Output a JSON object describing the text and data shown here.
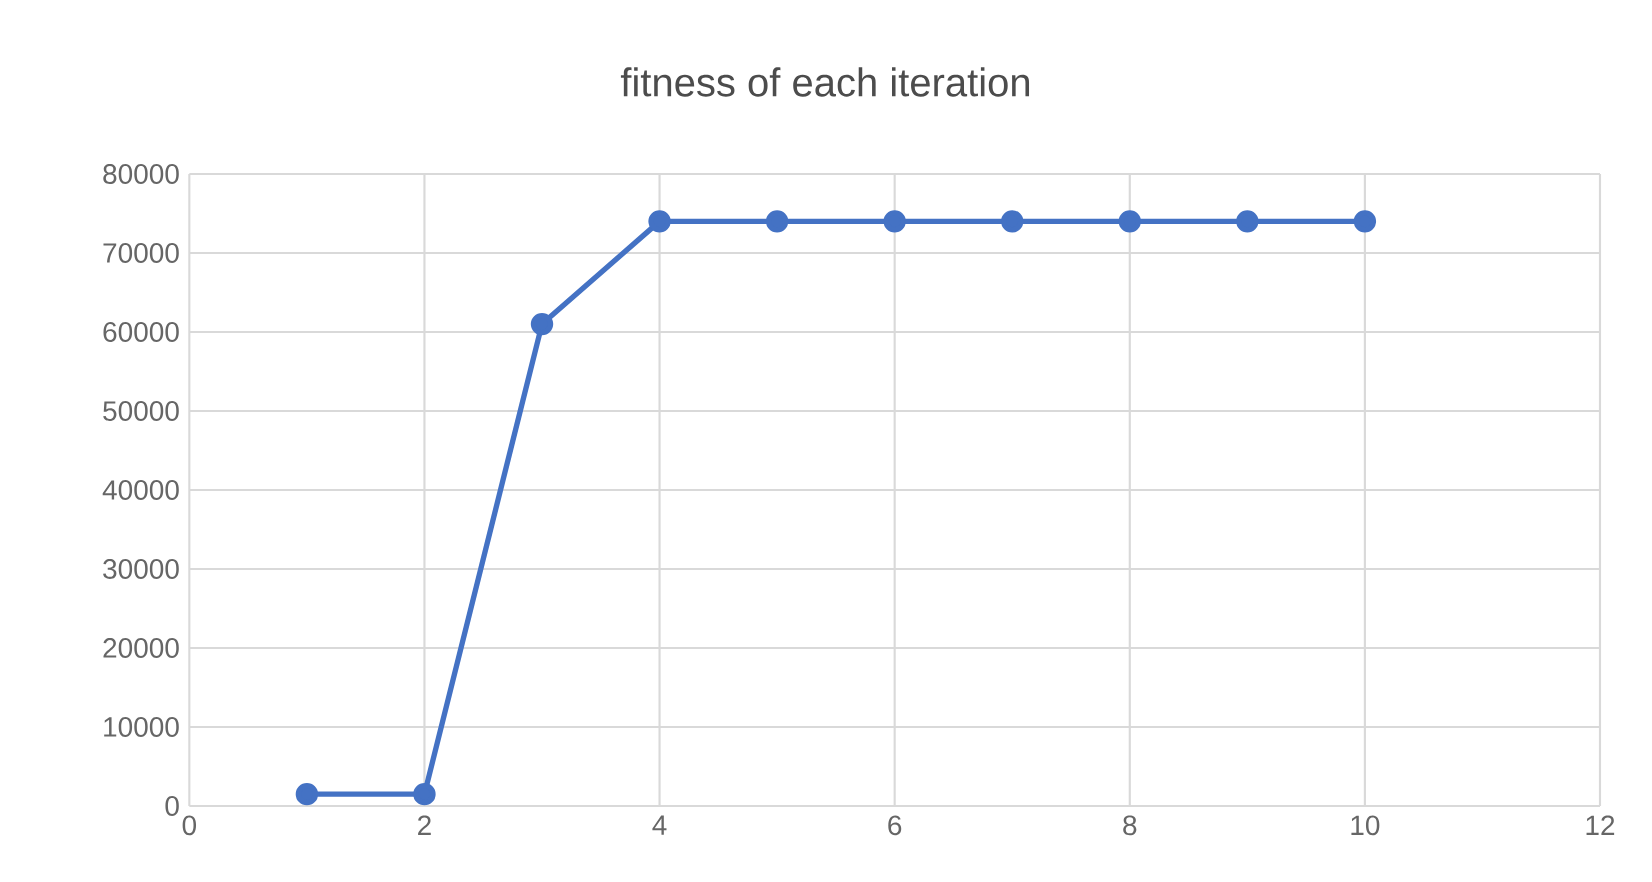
{
  "chart_data": {
    "type": "line",
    "title": "fitness of each iteration",
    "x": [
      1,
      2,
      3,
      4,
      5,
      6,
      7,
      8,
      9,
      10
    ],
    "series": [
      {
        "color": "#4472c4",
        "values": [
          1500,
          1500,
          61000,
          74000,
          74000,
          74000,
          74000,
          74000,
          74000,
          74000
        ]
      }
    ],
    "xlim": [
      0,
      12
    ],
    "xticks": [
      0,
      2,
      4,
      6,
      8,
      10,
      12
    ],
    "ylim": [
      0,
      80000
    ],
    "yticks": [
      0,
      10000,
      20000,
      30000,
      40000,
      50000,
      60000,
      70000,
      80000
    ],
    "grid": true,
    "marker": "circle",
    "line_style": "solid"
  }
}
